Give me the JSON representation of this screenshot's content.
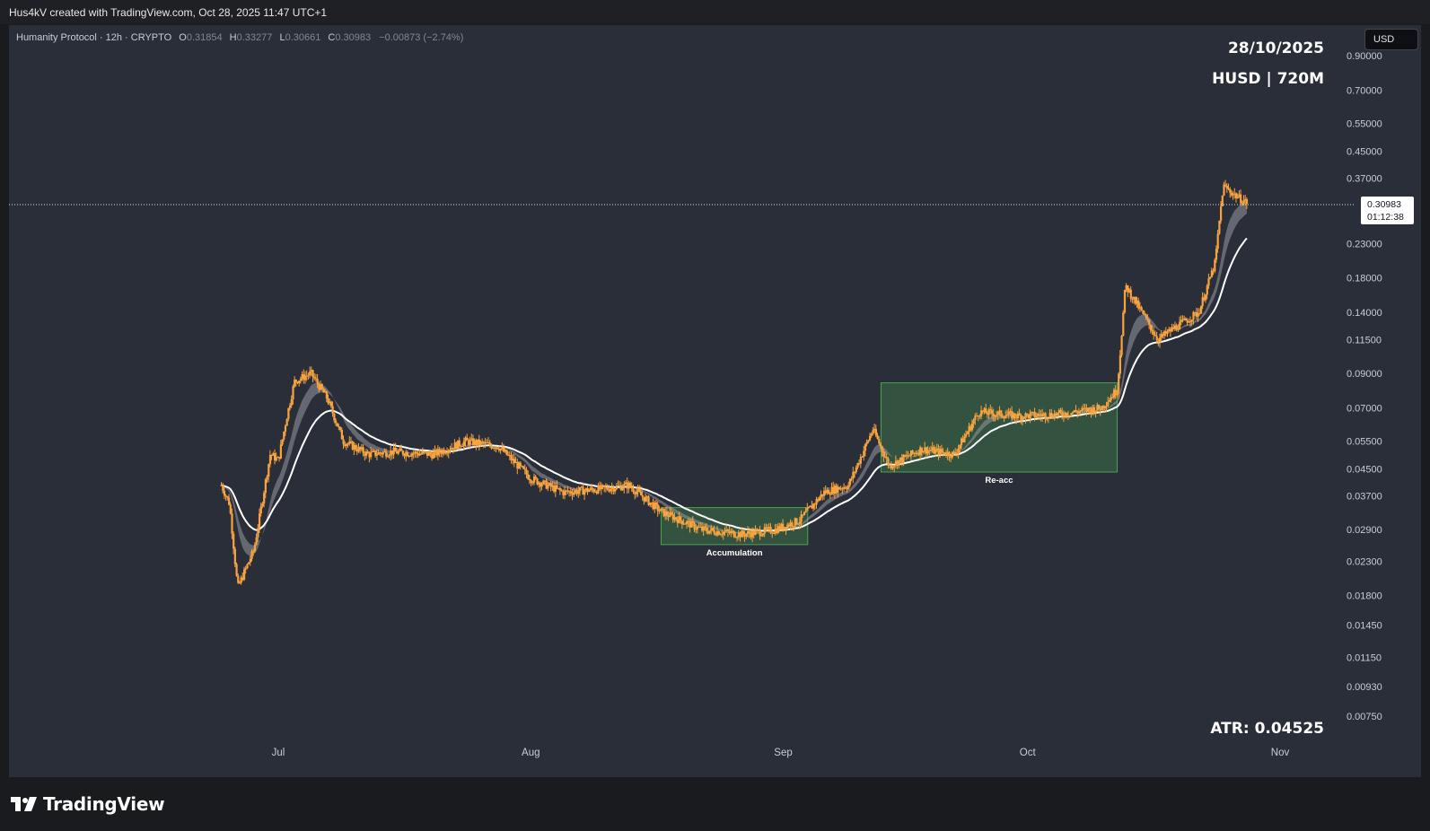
{
  "header": {
    "attribution": "Hus4kV created with TradingView.com, Oct 28, 2025 11:47 UTC+1"
  },
  "legend": {
    "symbol": "Humanity Protocol · 12h · CRYPTO",
    "open_label": "O",
    "open": "0.31854",
    "high_label": "H",
    "high": "0.33277",
    "low_label": "L",
    "low": "0.30661",
    "close_label": "C",
    "close": "0.30983",
    "change": "−0.00873 (−2.74%)"
  },
  "overlay": {
    "date": "28/10/2025",
    "ticker_line": "HUSD | 720M",
    "atr": "ATR: 0.04525"
  },
  "scale": {
    "currency_button": "USD",
    "last_price": "0.30983",
    "countdown": "01:12:38"
  },
  "footer": {
    "brand": "TradingView"
  },
  "colors": {
    "background": "#2a2e39",
    "candle": "#f7a440",
    "ma_line": "#ffffff",
    "ribbon": "#9598a1",
    "zone_fill": "#4caf50",
    "zone_border": "#4caf50"
  },
  "chart_data": {
    "type": "candlestick",
    "title": "Humanity Protocol · 12h · CRYPTO",
    "y_scale": "log",
    "ylim": [
      0.0075,
      0.9
    ],
    "y_ticks": [
      "0.90000",
      "0.70000",
      "0.55000",
      "0.45000",
      "0.37000",
      "0.23000",
      "0.18000",
      "0.14000",
      "0.11500",
      "0.09000",
      "0.07000",
      "0.05500",
      "0.04500",
      "0.03700",
      "0.02900",
      "0.02300",
      "0.01800",
      "0.01450",
      "0.01150",
      "0.00930",
      "0.00750"
    ],
    "x_ticks": [
      "Jul",
      "Aug",
      "Sep",
      "Oct",
      "Nov"
    ],
    "approx_price_path": [
      {
        "date": "2025-06-24",
        "close": 0.04
      },
      {
        "date": "2025-06-25",
        "close": 0.035
      },
      {
        "date": "2025-06-26",
        "close": 0.019
      },
      {
        "date": "2025-06-28",
        "close": 0.025
      },
      {
        "date": "2025-06-30",
        "close": 0.05
      },
      {
        "date": "2025-07-01",
        "close": 0.048
      },
      {
        "date": "2025-07-02",
        "close": 0.065
      },
      {
        "date": "2025-07-03",
        "close": 0.085
      },
      {
        "date": "2025-07-05",
        "close": 0.09
      },
      {
        "date": "2025-07-07",
        "close": 0.075
      },
      {
        "date": "2025-07-09",
        "close": 0.055
      },
      {
        "date": "2025-07-12",
        "close": 0.05
      },
      {
        "date": "2025-07-15",
        "close": 0.051
      },
      {
        "date": "2025-07-20",
        "close": 0.05
      },
      {
        "date": "2025-07-24",
        "close": 0.055
      },
      {
        "date": "2025-07-28",
        "close": 0.053
      },
      {
        "date": "2025-08-01",
        "close": 0.042
      },
      {
        "date": "2025-08-05",
        "close": 0.038
      },
      {
        "date": "2025-08-10",
        "close": 0.039
      },
      {
        "date": "2025-08-13",
        "close": 0.04
      },
      {
        "date": "2025-08-17",
        "close": 0.033
      },
      {
        "date": "2025-08-22",
        "close": 0.029
      },
      {
        "date": "2025-08-27",
        "close": 0.028
      },
      {
        "date": "2025-08-31",
        "close": 0.029
      },
      {
        "date": "2025-09-03",
        "close": 0.031
      },
      {
        "date": "2025-09-06",
        "close": 0.038
      },
      {
        "date": "2025-09-09",
        "close": 0.04
      },
      {
        "date": "2025-09-12",
        "close": 0.06
      },
      {
        "date": "2025-09-14",
        "close": 0.046
      },
      {
        "date": "2025-09-18",
        "close": 0.052
      },
      {
        "date": "2025-09-22",
        "close": 0.05
      },
      {
        "date": "2025-09-25",
        "close": 0.068
      },
      {
        "date": "2025-09-30",
        "close": 0.066
      },
      {
        "date": "2025-10-05",
        "close": 0.067
      },
      {
        "date": "2025-10-10",
        "close": 0.07
      },
      {
        "date": "2025-10-12",
        "close": 0.08
      },
      {
        "date": "2025-10-13",
        "close": 0.17
      },
      {
        "date": "2025-10-15",
        "close": 0.14
      },
      {
        "date": "2025-10-17",
        "close": 0.115
      },
      {
        "date": "2025-10-19",
        "close": 0.125
      },
      {
        "date": "2025-10-22",
        "close": 0.14
      },
      {
        "date": "2025-10-24",
        "close": 0.2
      },
      {
        "date": "2025-10-25",
        "close": 0.35
      },
      {
        "date": "2025-10-27",
        "close": 0.32
      },
      {
        "date": "2025-10-28",
        "close": 0.30983
      }
    ],
    "annotations": [
      {
        "label": "Accumulation",
        "from": "2025-08-17",
        "to": "2025-09-04",
        "low": 0.026,
        "high": 0.034
      },
      {
        "label": "Re-acc",
        "from": "2025-09-13",
        "to": "2025-10-12",
        "low": 0.044,
        "high": 0.084
      }
    ],
    "last_price": 0.30983
  }
}
